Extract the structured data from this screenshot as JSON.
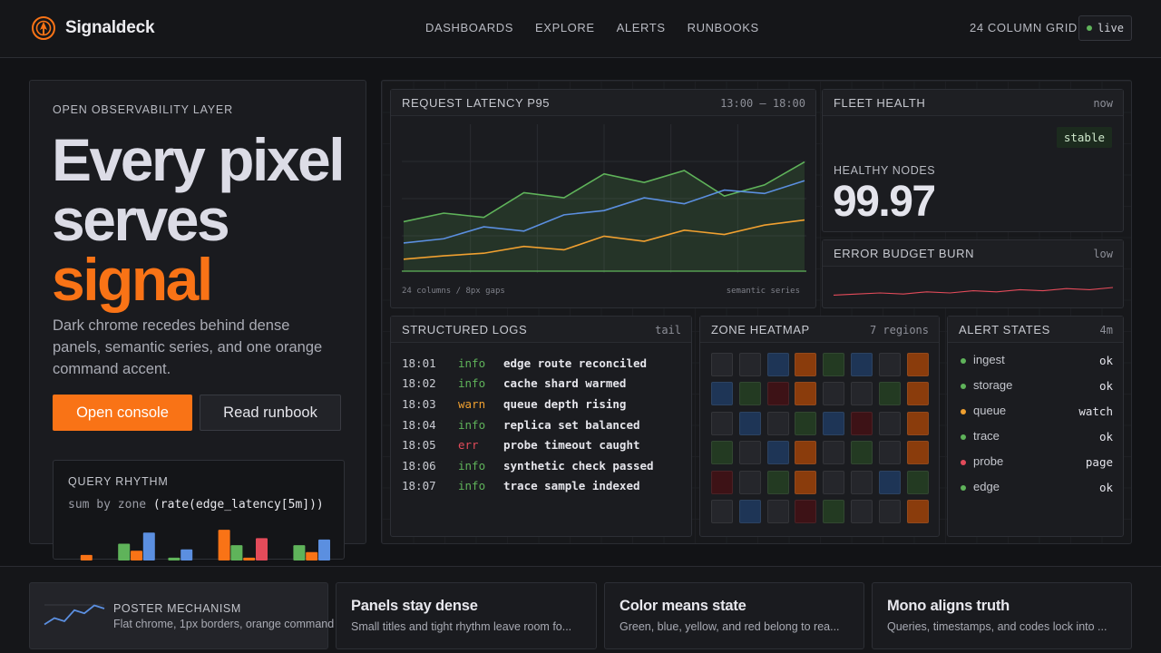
{
  "brand": {
    "name": "Signaldeck",
    "logo_icon": "beacon-icon"
  },
  "nav": [
    "DASHBOARDS",
    "EXPLORE",
    "ALERTS",
    "RUNBOOKS"
  ],
  "topbar": {
    "grid_label": "24 COLUMN GRID",
    "live_label": "live"
  },
  "colors": {
    "accent": "#f97316",
    "green": "#5fb35a",
    "blue": "#5b8fe0",
    "yellow": "#f0a030",
    "red": "#e34b5a"
  },
  "hero": {
    "eyebrow": "OPEN OBSERVABILITY LAYER",
    "headline_1": "Every pixel",
    "headline_2": "serves",
    "headline_accent": "signal",
    "lede": "Dark chrome recedes behind dense panels, semantic series, and one orange command accent.",
    "primary_cta": "Open console",
    "secondary_cta": "Read runbook",
    "query": {
      "title": "QUERY RHYTHM",
      "code_prefix": "sum by zone ",
      "code_expr": "(rate(edge_latency[5m]))"
    }
  },
  "latency_panel": {
    "title": "REQUEST LATENCY P95",
    "range": "13:00 — 18:00",
    "foot_left": "24 columns / 8px gaps",
    "foot_right": "semantic series"
  },
  "fleet_panel": {
    "title": "FLEET HEALTH",
    "meta": "now",
    "badge": "stable",
    "kpi_label": "HEALTHY NODES",
    "kpi_value": "99.97"
  },
  "burn_panel": {
    "title": "ERROR BUDGET BURN",
    "meta": "low"
  },
  "logs_panel": {
    "title": "STRUCTURED LOGS",
    "meta": "tail",
    "rows": [
      {
        "time": "18:01",
        "level": "info",
        "message": "edge route reconciled"
      },
      {
        "time": "18:02",
        "level": "info",
        "message": "cache shard warmed"
      },
      {
        "time": "18:03",
        "level": "warn",
        "message": "queue depth rising"
      },
      {
        "time": "18:04",
        "level": "info",
        "message": "replica set balanced"
      },
      {
        "time": "18:05",
        "level": "err",
        "message": "probe timeout caught"
      },
      {
        "time": "18:06",
        "level": "info",
        "message": "synthetic check passed"
      },
      {
        "time": "18:07",
        "level": "info",
        "message": "trace sample indexed"
      }
    ]
  },
  "heatmap_panel": {
    "title": "ZONE HEATMAP",
    "meta": "7 regions",
    "grid": [
      [
        "neutral",
        "neutral",
        "blue",
        "orange",
        "green",
        "blue",
        "neutral",
        "orange"
      ],
      [
        "blue",
        "green",
        "red",
        "orange",
        "neutral",
        "neutral",
        "green",
        "orange"
      ],
      [
        "neutral",
        "blue",
        "neutral",
        "green",
        "blue",
        "red",
        "neutral",
        "orange"
      ],
      [
        "green",
        "neutral",
        "blue",
        "orange",
        "neutral",
        "green",
        "neutral",
        "orange"
      ],
      [
        "red",
        "neutral",
        "green",
        "orange",
        "neutral",
        "neutral",
        "blue",
        "green"
      ],
      [
        "neutral",
        "blue",
        "neutral",
        "red",
        "green",
        "neutral",
        "neutral",
        "orange"
      ]
    ]
  },
  "alerts_panel": {
    "title": "ALERT STATES",
    "meta": "4m",
    "rows": [
      {
        "name": "ingest",
        "state": "ok",
        "color": "#5fb35a"
      },
      {
        "name": "storage",
        "state": "ok",
        "color": "#5fb35a"
      },
      {
        "name": "queue",
        "state": "watch",
        "color": "#f0a030"
      },
      {
        "name": "trace",
        "state": "ok",
        "color": "#5fb35a"
      },
      {
        "name": "probe",
        "state": "page",
        "color": "#e34b5a"
      },
      {
        "name": "edge",
        "state": "ok",
        "color": "#5fb35a"
      }
    ]
  },
  "bottom_cards": {
    "poster": {
      "title": "POSTER MECHANISM",
      "sub": "Flat chrome, 1px borders, orange command"
    },
    "cards": [
      {
        "title": "Panels stay dense",
        "sub": "Small titles and tight rhythm leave room fo..."
      },
      {
        "title": "Color means state",
        "sub": "Green, blue, yellow, and red belong to rea..."
      },
      {
        "title": "Mono aligns truth",
        "sub": "Queries, timestamps, and codes lock into ..."
      }
    ]
  },
  "chart_data": [
    {
      "type": "area",
      "title": "REQUEST LATENCY P95",
      "x": [
        0,
        1,
        2,
        3,
        4,
        5,
        6,
        7,
        8,
        9,
        10
      ],
      "series": [
        {
          "values": [
            58,
            68,
            63,
            92,
            86,
            114,
            104,
            118,
            88,
            101,
            128
          ],
          "color": "#5fb35a",
          "fill": true
        },
        {
          "values": [
            33,
            38,
            52,
            47,
            66,
            71,
            86,
            79,
            95,
            91,
            106
          ],
          "color": "#5b8fe0"
        },
        {
          "values": [
            14,
            18,
            21,
            29,
            25,
            41,
            35,
            48,
            43,
            54,
            60
          ],
          "color": "#f0a030"
        }
      ],
      "ylim": [
        0,
        170
      ],
      "grid": true
    },
    {
      "type": "line",
      "title": "ERROR BUDGET BURN",
      "values": [
        3,
        4,
        5,
        4,
        6,
        5,
        7,
        6,
        8,
        7,
        9,
        8,
        10
      ],
      "ylim": [
        0,
        20
      ],
      "color": "#e34b5a"
    },
    {
      "type": "bar",
      "title": "QUERY RHYTHM",
      "values": [
        0,
        4,
        0,
        0,
        12,
        7,
        20,
        0,
        2,
        8,
        0,
        0,
        22,
        11,
        2,
        16,
        0,
        0,
        11,
        6,
        15
      ],
      "colors": [
        "#5fb35a",
        "#f97316",
        "#5fb35a",
        "#5b8fe0",
        "#5fb35a",
        "#f97316",
        "#5b8fe0",
        "#5fb35a",
        "#5fb35a",
        "#5b8fe0",
        "#5b8fe0",
        "#5fb35a",
        "#f97316",
        "#5fb35a",
        "#f97316",
        "#e34b5a",
        "#5b8fe0",
        "#5fb35a",
        "#5fb35a",
        "#f97316",
        "#5b8fe0"
      ],
      "ylim": [
        0,
        26
      ]
    },
    {
      "type": "line",
      "title": "POSTER MECHANISM",
      "values": [
        2,
        6,
        4,
        11,
        9,
        14,
        12
      ],
      "ylim": [
        0,
        16
      ],
      "color": "#5b8fe0"
    }
  ]
}
